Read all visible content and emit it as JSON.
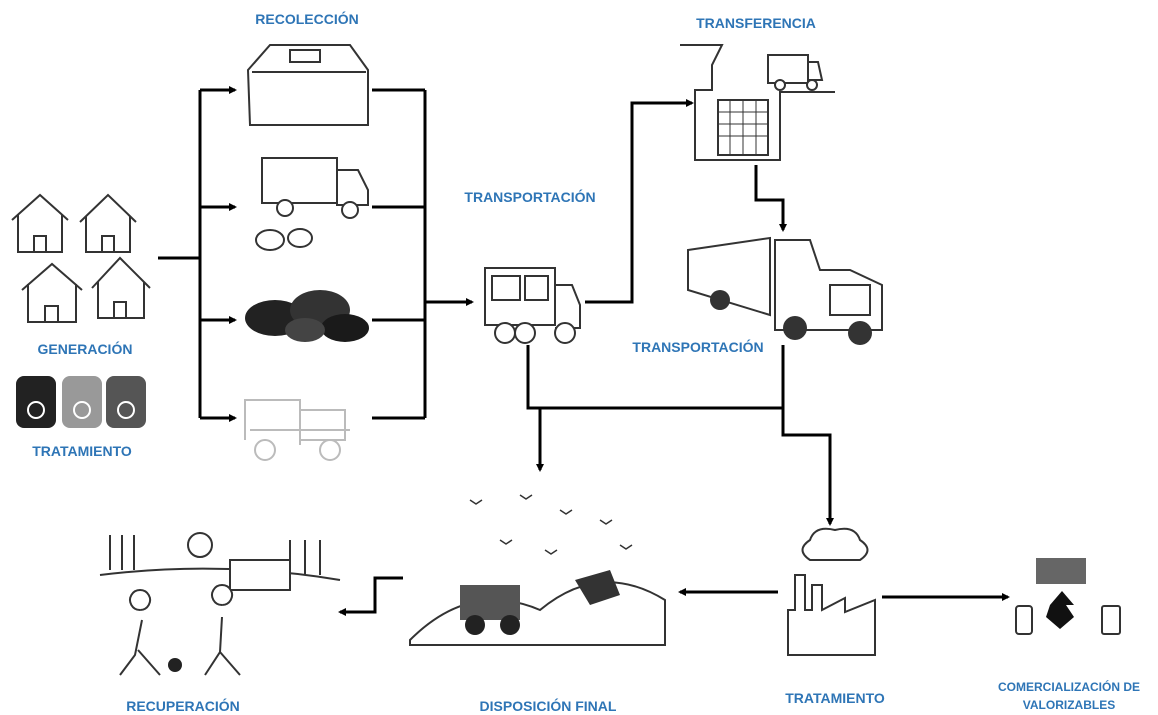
{
  "nodes": [
    {
      "label": "RECOLECCIÓN"
    },
    {
      "label": "TRANSFERENCIA"
    },
    {
      "label": "TRANSPORTACIÓN"
    },
    {
      "label": "TRANSPORTACIÓN"
    },
    {
      "label": "GENERACIÓN"
    },
    {
      "label": "TRATAMIENTO"
    },
    {
      "label": "RECUPERACIÓN"
    },
    {
      "label": "DISPOSICIÓN FINAL"
    },
    {
      "label": "TRATAMIENTO"
    },
    {
      "label": [
        "COMERCIALIZACIÓN DE",
        "VALORIZABLES"
      ]
    }
  ]
}
